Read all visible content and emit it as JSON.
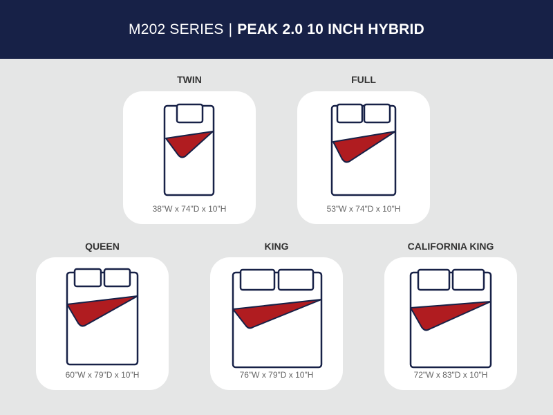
{
  "header": {
    "series": "M202 SERIES",
    "separator": "|",
    "product": "PEAK 2.0 10 INCH HYBRID"
  },
  "colors": {
    "header_bg": "#172147",
    "outline": "#172147",
    "blanket": "#b01c20",
    "card": "#ffffff",
    "background": "#e5e6e6"
  },
  "sizes": [
    {
      "name": "TWIN",
      "dimensions": "38\"W x 74\"D x 10\"H",
      "icon": "twin-bed-icon"
    },
    {
      "name": "FULL",
      "dimensions": "53\"W x 74\"D x 10\"H",
      "icon": "full-bed-icon"
    },
    {
      "name": "QUEEN",
      "dimensions": "60\"W x 79\"D x 10\"H",
      "icon": "queen-bed-icon"
    },
    {
      "name": "KING",
      "dimensions": "76\"W x 79\"D x 10\"H",
      "icon": "king-bed-icon"
    },
    {
      "name": "CALIFORNIA KING",
      "dimensions": "72\"W x 83\"D x 10\"H",
      "icon": "california-king-bed-icon"
    }
  ]
}
